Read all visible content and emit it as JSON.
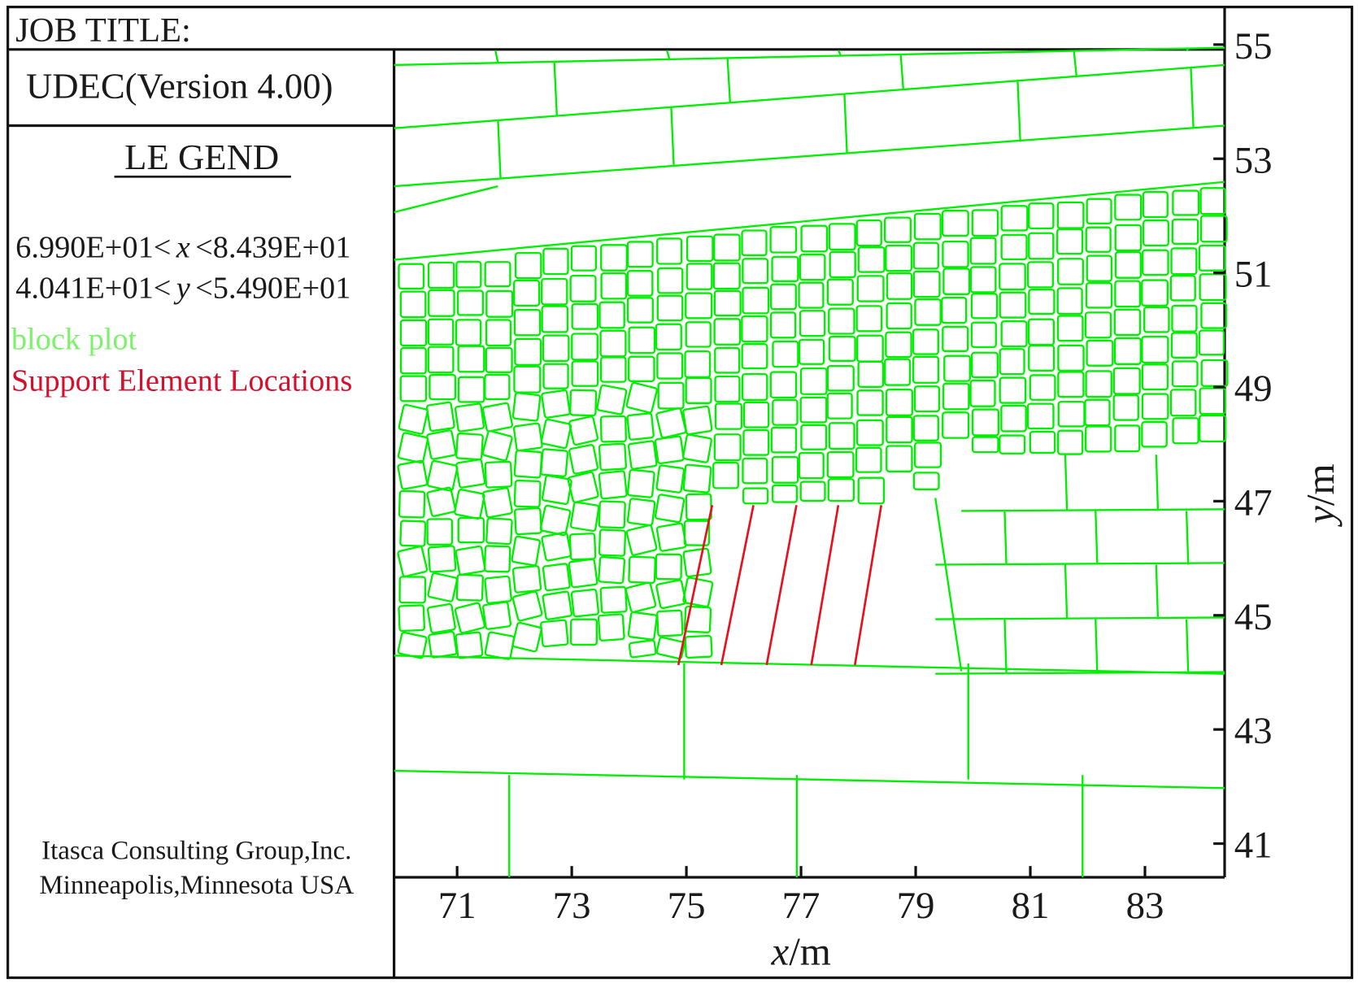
{
  "header": {
    "job_title": "JOB TITLE:"
  },
  "panel": {
    "version": "UDEC(Version 4.00)",
    "legend_title": "LE GEND",
    "x_range": {
      "lo": "6.990E+01<",
      "var": "x",
      "hi": "<8.439E+01"
    },
    "y_range": {
      "lo": "4.041E+01<",
      "var": "y",
      "hi": "<5.490E+01"
    },
    "legend_items": [
      {
        "label": "block plot",
        "color": "#7cf26a"
      },
      {
        "label": "Support Element Locations",
        "color": "#d4102c"
      }
    ],
    "company": "Itasca Consulting Group,Inc.",
    "location": "Minneapolis,Minnesota USA"
  },
  "chart_data": {
    "type": "block-plot",
    "xlabel_var": "x",
    "xlabel_unit": "/m",
    "ylabel_var": "y",
    "ylabel_unit": "/m",
    "xlim": [
      69.9,
      84.39
    ],
    "ylim": [
      40.41,
      54.9
    ],
    "x_ticks": [
      "71",
      "73",
      "75",
      "77",
      "79",
      "81",
      "83"
    ],
    "y_ticks": [
      "55",
      "53",
      "51",
      "49",
      "47",
      "45",
      "43",
      "41"
    ],
    "x_tick_values": [
      71,
      73,
      75,
      77,
      79,
      81,
      83
    ],
    "y_tick_values": [
      55,
      53,
      51,
      49,
      47,
      45,
      43,
      41
    ],
    "block_color": "#00ee00",
    "support_color": "#e8101c",
    "support_elements": [
      {
        "x1": 74.86,
        "y1": 44.13,
        "x2": 75.45,
        "y2": 46.93
      },
      {
        "x1": 75.61,
        "y1": 44.13,
        "x2": 76.17,
        "y2": 46.93
      },
      {
        "x1": 76.4,
        "y1": 44.13,
        "x2": 76.92,
        "y2": 46.93
      },
      {
        "x1": 77.18,
        "y1": 44.13,
        "x2": 77.65,
        "y2": 46.93
      },
      {
        "x1": 77.94,
        "y1": 44.13,
        "x2": 78.4,
        "y2": 46.93
      }
    ]
  }
}
